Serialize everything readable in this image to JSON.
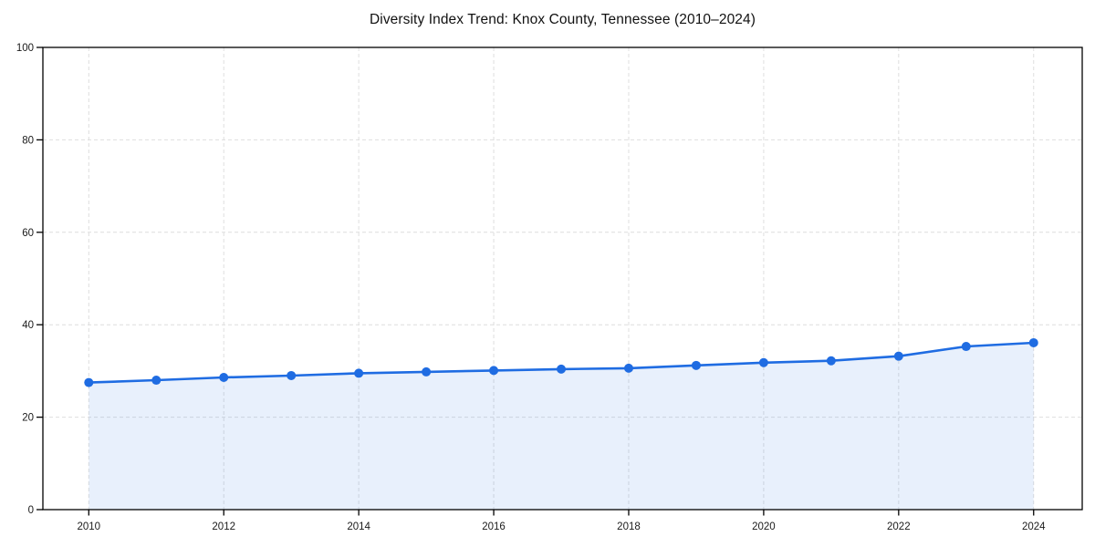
{
  "chart_data": {
    "type": "line",
    "title": "Diversity Index Trend: Knox County, Tennessee (2010–2024)",
    "xlabel": "",
    "ylabel": "",
    "x": [
      2010,
      2011,
      2012,
      2013,
      2014,
      2015,
      2016,
      2017,
      2018,
      2019,
      2020,
      2021,
      2022,
      2023,
      2024
    ],
    "series": [
      {
        "name": "Diversity Index",
        "values": [
          27.5,
          28.0,
          28.6,
          29.0,
          29.5,
          29.8,
          30.1,
          30.4,
          30.6,
          31.2,
          31.8,
          32.2,
          33.2,
          35.3,
          36.1
        ]
      }
    ],
    "ylim": [
      0,
      100
    ],
    "xlim": [
      2009.32,
      2024.72
    ],
    "y_ticks": [
      0,
      20,
      40,
      60,
      80,
      100
    ],
    "x_ticks": [
      2010,
      2012,
      2014,
      2016,
      2018,
      2020,
      2022,
      2024
    ],
    "grid": "dashed",
    "legend_position": "none",
    "area_fill_under_line": true,
    "colors": {
      "line": "#1f6ce2",
      "marker": "#1f6ce2",
      "area_fill": "rgba(31,108,226,0.10)",
      "gridline": "#dedede",
      "axis": "#000000",
      "tick_label": "#1a1a1a",
      "title": "#111111",
      "background": "#ffffff"
    }
  }
}
